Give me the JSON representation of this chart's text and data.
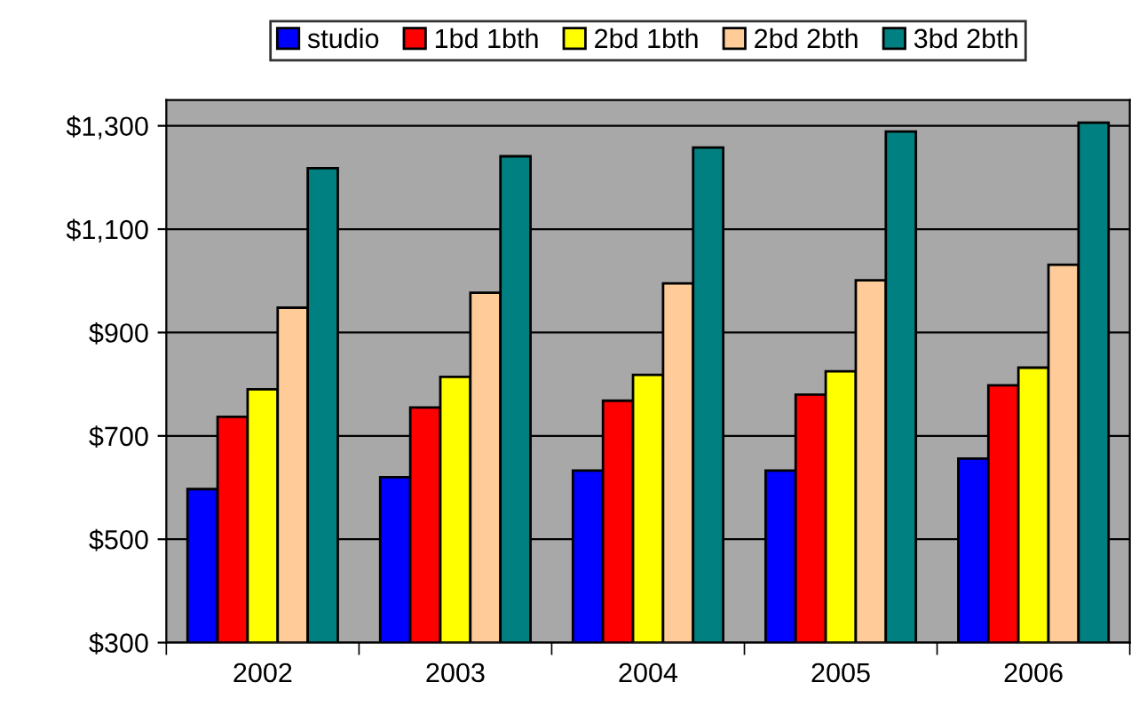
{
  "chart_data": {
    "type": "bar",
    "categories": [
      "2002",
      "2003",
      "2004",
      "2005",
      "2006"
    ],
    "series": [
      {
        "name": "studio",
        "color": "#0000ff",
        "values": [
          597,
          620,
          633,
          633,
          656
        ]
      },
      {
        "name": "1bd 1bth",
        "color": "#ff0000",
        "values": [
          737,
          755,
          768,
          780,
          798
        ]
      },
      {
        "name": "2bd 1bth",
        "color": "#ffff00",
        "values": [
          790,
          814,
          818,
          825,
          832
        ]
      },
      {
        "name": "2bd 2bth",
        "color": "#ffcc99",
        "values": [
          948,
          977,
          995,
          1001,
          1031
        ]
      },
      {
        "name": "3bd 2bth",
        "color": "#008080",
        "values": [
          1218,
          1241,
          1258,
          1289,
          1306
        ]
      }
    ],
    "ylim": [
      300,
      1350
    ],
    "yticks": [
      {
        "value": 300,
        "label": "$300"
      },
      {
        "value": 500,
        "label": "$500"
      },
      {
        "value": 700,
        "label": "$700"
      },
      {
        "value": 900,
        "label": "$900"
      },
      {
        "value": 1100,
        "label": "$1,100"
      },
      {
        "value": 1300,
        "label": "$1,300"
      }
    ],
    "grid": "y",
    "legend": "top"
  }
}
